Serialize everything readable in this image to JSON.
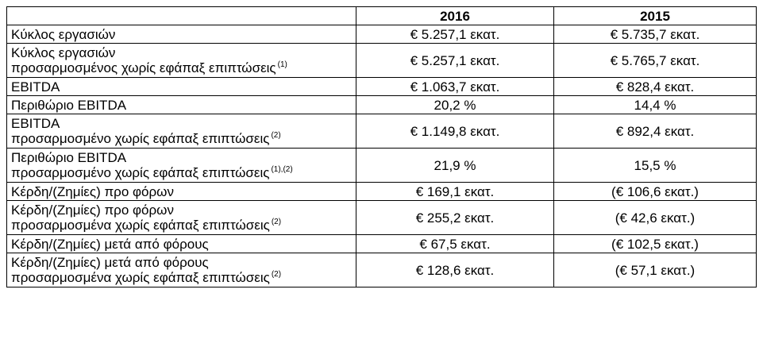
{
  "table": {
    "headers": [
      "",
      "2016",
      "2015"
    ],
    "rows": [
      {
        "line1": "Κύκλος εργασιών",
        "line2": "",
        "note": "",
        "v2016": "€ 5.257,1 εκατ.",
        "v2015": "€ 5.735,7 εκατ."
      },
      {
        "line1": "Κύκλος εργασιών",
        "line2": "προσαρμοσμένος χωρίς εφάπαξ επιπτώσεις",
        "note": "(1)",
        "v2016": "€ 5.257,1 εκατ.",
        "v2015": "€ 5.765,7 εκατ."
      },
      {
        "line1": "EBITDA",
        "line2": "",
        "note": "",
        "v2016": "€ 1.063,7  εκατ.",
        "v2015": "€ 828,4 εκατ."
      },
      {
        "line1": "Περιθώριο EBITDA",
        "line2": "",
        "note": "",
        "v2016": "20,2 %",
        "v2015": "14,4 %"
      },
      {
        "line1": "EBITDA",
        "line2": "προσαρμοσμένο χωρίς εφάπαξ επιπτώσεις",
        "note": "(2)",
        "v2016": "€ 1.149,8 εκατ.",
        "v2015": "€ 892,4 εκατ."
      },
      {
        "line1": "Περιθώριο EBITDA",
        "line2": "προσαρμοσμένο χωρίς εφάπαξ επιπτώσεις",
        "note": "(1),(2)",
        "v2016": "21,9 %",
        "v2015": "15,5 %"
      },
      {
        "line1": "Κέρδη/(Ζημίες) προ φόρων",
        "line2": "",
        "note": "",
        "v2016": "€ 169,1 εκατ.",
        "v2015": "(€ 106,6 εκατ.)"
      },
      {
        "line1": "Κέρδη/(Ζημίες) προ φόρων",
        "line2": "προσαρμοσμένα χωρίς εφάπαξ επιπτώσεις",
        "note": "(2)",
        "v2016": "€ 255,2  εκατ.",
        "v2015": "(€ 42,6 εκατ.)"
      },
      {
        "line1": "Κέρδη/(Ζημίες) μετά από φόρους",
        "line2": "",
        "note": "",
        "v2016": "€ 67,5 εκατ.",
        "v2015": "(€ 102,5 εκατ.)"
      },
      {
        "line1": "Κέρδη/(Ζημίες) μετά από φόρους",
        "line2": "προσαρμοσμένα χωρίς εφάπαξ επιπτώσεις",
        "note": "(2)",
        "v2016": "€ 128,6 εκατ.",
        "v2015": "(€ 57,1 εκατ.)"
      }
    ]
  }
}
